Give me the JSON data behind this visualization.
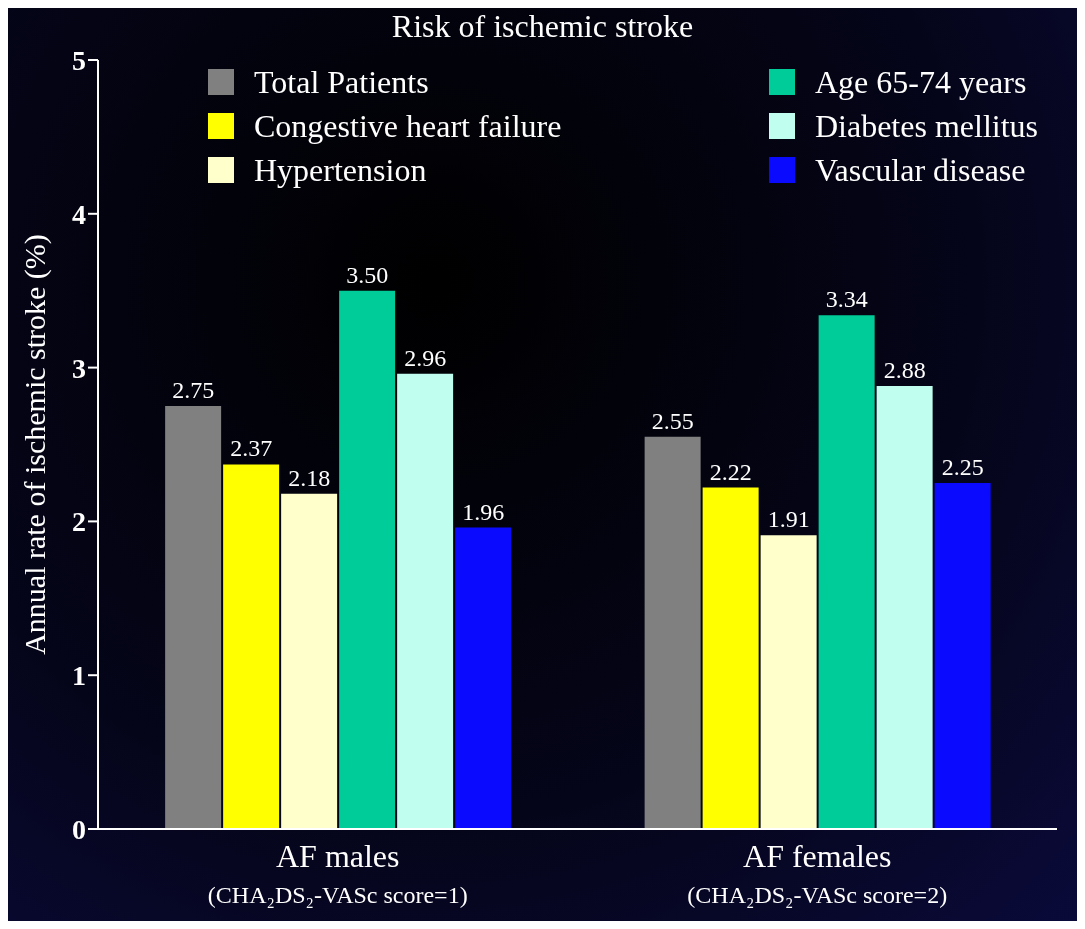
{
  "chart_data": {
    "type": "bar",
    "title": "Risk of ischemic stroke",
    "ylabel": "Annual rate of ischemic stroke (%)",
    "categories": [
      "AF males\n(CHA₂DS₂-VASc score=1)",
      "AF females\n(CHA₂DS₂-VASc score=2)"
    ],
    "series": [
      {
        "name": "Total Patients",
        "color": "#808080",
        "values": [
          2.75,
          2.55
        ],
        "value_labels": [
          "2.75",
          "2.55"
        ]
      },
      {
        "name": "Congestive heart failure",
        "color": "#ffff00",
        "values": [
          2.37,
          2.22
        ],
        "value_labels": [
          "2.37",
          "2.22"
        ]
      },
      {
        "name": "Hypertension",
        "color": "#ffffcc",
        "values": [
          2.18,
          1.91
        ],
        "value_labels": [
          "2.18",
          "1.91"
        ]
      },
      {
        "name": "Age 65-74 years",
        "color": "#00cc99",
        "values": [
          3.5,
          3.34
        ],
        "value_labels": [
          "3.50",
          "3.34"
        ]
      },
      {
        "name": "Diabetes mellitus",
        "color": "#c0fff0",
        "values": [
          2.96,
          2.88
        ],
        "value_labels": [
          "2.96",
          "2.88"
        ]
      },
      {
        "name": "Vascular disease",
        "color": "#0a0aff",
        "values": [
          1.96,
          2.25
        ],
        "value_labels": [
          "1.96",
          "2.25"
        ]
      }
    ],
    "ylim": [
      0,
      5
    ],
    "yticks": [
      0,
      1,
      2,
      3,
      4,
      5
    ],
    "legend": "top"
  }
}
